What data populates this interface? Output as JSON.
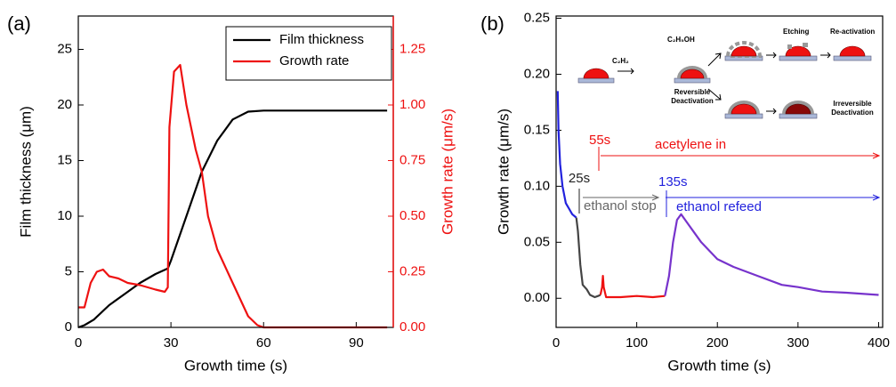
{
  "chart_data": [
    {
      "type": "line",
      "label": "(a)",
      "x_label": "Growth time (s)",
      "y_label": "Film thickness (μm)",
      "y2_label": "Growth rate (μm/s)",
      "xlim": [
        0,
        102
      ],
      "xticks": [
        0,
        30,
        60,
        90
      ],
      "ylim": [
        0,
        28
      ],
      "yticks": [
        0,
        5,
        10,
        15,
        20,
        25
      ],
      "y2lim": [
        0,
        1.4
      ],
      "y2ticks": [
        {
          "value": 0,
          "label": "0.00"
        },
        0.25,
        {
          "value": 0.5,
          "label": "0.50"
        },
        0.75,
        {
          "value": 1,
          "label": "1.00"
        },
        1.25
      ],
      "legend": "upper right",
      "series": [
        {
          "name": "Film thickness",
          "color": "#000000",
          "x": [
            0,
            2,
            5,
            10,
            15,
            20,
            25,
            29,
            30,
            35,
            40,
            45,
            50,
            55,
            60,
            70,
            100
          ],
          "values": [
            0,
            0.2,
            0.7,
            2,
            3,
            4,
            4.8,
            5.3,
            6,
            10,
            14,
            16.8,
            18.7,
            19.4,
            19.5,
            19.5,
            19.5
          ]
        },
        {
          "name": "Growth rate",
          "color": "#ee1111",
          "axis": "y2",
          "x": [
            0,
            2,
            4,
            6,
            8,
            10,
            13,
            16,
            20,
            25,
            28,
            29,
            29.5,
            31,
            33,
            35,
            38,
            40,
            42,
            45,
            50,
            55,
            58,
            60,
            100
          ],
          "values": [
            0.09,
            0.09,
            0.2,
            0.25,
            0.26,
            0.23,
            0.22,
            0.2,
            0.19,
            0.17,
            0.16,
            0.18,
            0.9,
            1.15,
            1.18,
            1.0,
            0.8,
            0.7,
            0.5,
            0.35,
            0.2,
            0.05,
            0.01,
            0,
            0
          ]
        }
      ]
    },
    {
      "type": "line",
      "label": "(b)",
      "x_label": "Growth time (s)",
      "y_label": "Growth rate (μm/s)",
      "xlim": [
        0,
        405
      ],
      "xticks": [
        0,
        100,
        200,
        300,
        400
      ],
      "ylim": [
        -0.026,
        0.252
      ],
      "yticks": [
        {
          "value": 0,
          "label": "0.00"
        },
        0.05,
        {
          "value": 0.1,
          "label": "0.10"
        },
        0.15,
        {
          "value": 0.2,
          "label": "0.20"
        },
        0.25
      ],
      "series": [
        {
          "color": "#2222dd",
          "x": [
            2,
            3,
            5,
            8,
            12,
            16,
            20,
            25
          ],
          "values": [
            0.185,
            0.15,
            0.12,
            0.1,
            0.085,
            0.08,
            0.075,
            0.072
          ]
        },
        {
          "color": "#444444",
          "x": [
            25,
            27,
            30,
            33,
            38,
            42,
            48,
            52,
            55
          ],
          "values": [
            0.072,
            0.06,
            0.03,
            0.012,
            0.008,
            0.003,
            0.001,
            0.002,
            0.003
          ]
        },
        {
          "color": "#ee1111",
          "x": [
            55,
            57,
            58,
            59,
            62,
            80,
            100,
            120,
            135
          ],
          "values": [
            0.003,
            0.01,
            0.02,
            0.01,
            0.001,
            0.001,
            0.002,
            0.001,
            0.002
          ]
        },
        {
          "color": "#7733cc",
          "x": [
            135,
            140,
            145,
            150,
            155,
            160,
            170,
            180,
            200,
            220,
            250,
            280,
            300,
            330,
            360,
            400
          ],
          "values": [
            0.002,
            0.02,
            0.05,
            0.07,
            0.075,
            0.07,
            0.06,
            0.05,
            0.035,
            0.028,
            0.02,
            0.012,
            0.01,
            0.006,
            0.005,
            0.003
          ]
        }
      ],
      "annotations": [
        {
          "text": "25s",
          "color": "#222222"
        },
        {
          "text": "ethanol stop",
          "color": "#666666"
        },
        {
          "text": "55s",
          "color": "#ee1111"
        },
        {
          "text": "acetylene in",
          "color": "#ee1111"
        },
        {
          "text": "135s",
          "color": "#2222dd"
        },
        {
          "text": "ethanol refeed",
          "color": "#2222dd"
        }
      ],
      "inset": {
        "c2h2": "C₂H₂",
        "c2h5oh": "C₂H₅OH",
        "etching": "Etching",
        "reactivation": "Re-activation",
        "reversible": [
          "Reversible",
          "Deactivation"
        ],
        "irreversible": [
          "Irreversible",
          "Deactivation"
        ]
      }
    }
  ]
}
